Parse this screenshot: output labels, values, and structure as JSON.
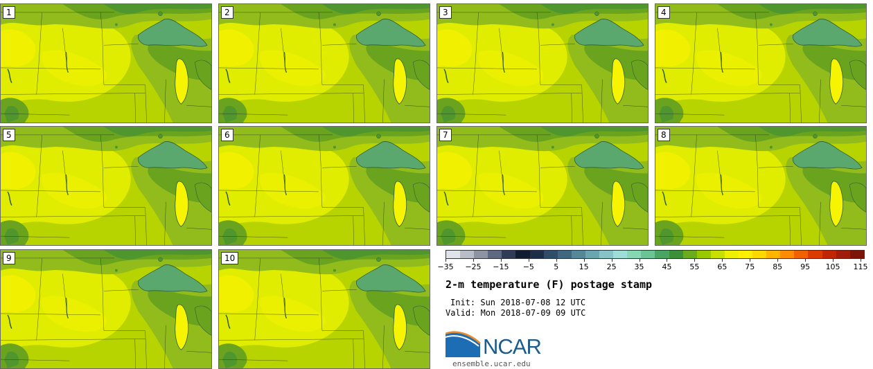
{
  "panels": [
    {
      "label": "1"
    },
    {
      "label": "2"
    },
    {
      "label": "3"
    },
    {
      "label": "4"
    },
    {
      "label": "5"
    },
    {
      "label": "6"
    },
    {
      "label": "7"
    },
    {
      "label": "8"
    },
    {
      "label": "9"
    },
    {
      "label": "10"
    }
  ],
  "colorbar": {
    "tick_labels": [
      "−35",
      "−25",
      "−15",
      "−5",
      "5",
      "15",
      "25",
      "35",
      "45",
      "55",
      "65",
      "75",
      "85",
      "95",
      "105",
      "115"
    ],
    "colors": [
      "#dfe3ea",
      "#b8bcc6",
      "#8c93a2",
      "#5e6880",
      "#2f3c58",
      "#121c30",
      "#1d2e48",
      "#2f4c68",
      "#3f6880",
      "#548898",
      "#6aa6b0",
      "#86c4c8",
      "#9fded8",
      "#86d8b4",
      "#6ac494",
      "#4aa462",
      "#3c903a",
      "#6aac1e",
      "#9ac800",
      "#c8e000",
      "#eef000",
      "#fff000",
      "#ffd800",
      "#ffb400",
      "#ff8c00",
      "#f06200",
      "#dc3c00",
      "#c02600",
      "#a01c0c",
      "#7c1408"
    ]
  },
  "title": "2-m temperature (F) postage stamp",
  "init": "Init: Sun 2018-07-08 12 UTC",
  "valid": "Valid: Mon 2018-07-09 09 UTC",
  "logo": {
    "text": "NCAR",
    "url": "ensemble.ucar.edu"
  },
  "map_colors": {
    "base": "#b8d400",
    "warm": "#e0ec00",
    "hot": "#f0f000",
    "cool": "#92bc1c",
    "cooler": "#6aa41e",
    "cold": "#4f962e",
    "lake": "#5aa86e",
    "michigan": "#f6f400"
  }
}
